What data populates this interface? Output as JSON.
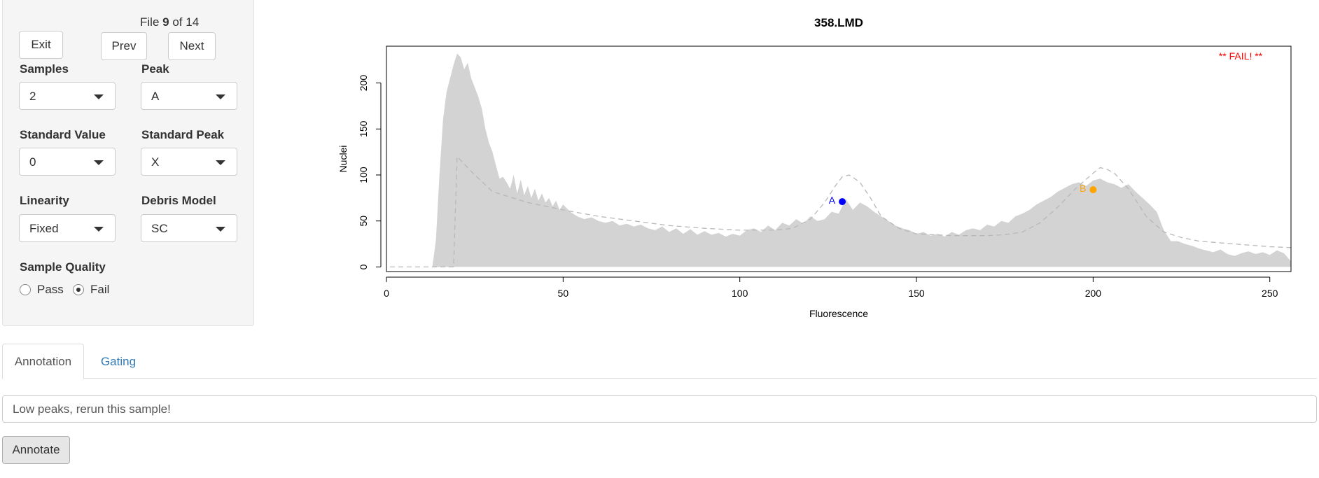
{
  "nav": {
    "file_prefix": "File",
    "file_index": "9",
    "file_of": "of 14",
    "exit_label": "Exit",
    "prev_label": "Prev",
    "next_label": "Next"
  },
  "controls": {
    "samples": {
      "label": "Samples",
      "value": "2"
    },
    "peak": {
      "label": "Peak",
      "value": "A"
    },
    "standard_value": {
      "label": "Standard Value",
      "value": "0"
    },
    "standard_peak": {
      "label": "Standard Peak",
      "value": "X"
    },
    "linearity": {
      "label": "Linearity",
      "value": "Fixed"
    },
    "debris_model": {
      "label": "Debris Model",
      "value": "SC"
    },
    "sample_quality": {
      "label": "Sample Quality",
      "options": [
        "Pass",
        "Fail"
      ],
      "selected": "Fail"
    }
  },
  "tabs": [
    {
      "label": "Annotation",
      "active": true
    },
    {
      "label": "Gating",
      "active": false
    }
  ],
  "annotation": {
    "value": "Low peaks, rerun this sample!"
  },
  "annotate_label": "Annotate",
  "colors": {
    "histogram": "#d3d3d3",
    "fit": "#b8b8b8",
    "peak_a": "#0000ff",
    "peak_b": "#ffa500",
    "fail": "#ff0000"
  },
  "chart_data": {
    "type": "area",
    "title": "358.LMD",
    "xlabel": "Fluorescence",
    "ylabel": "Nuclei",
    "xlim": [
      0,
      256
    ],
    "ylim": [
      -5,
      240
    ],
    "xticks": [
      0,
      50,
      100,
      150,
      200,
      250
    ],
    "yticks": [
      0,
      50,
      100,
      150,
      200
    ],
    "annotation": "** FAIL! **",
    "grid": false,
    "histogram": {
      "x": [
        13,
        14,
        15,
        16,
        17,
        18,
        19,
        20,
        21,
        22,
        23,
        24,
        25,
        26,
        27,
        28,
        29,
        30,
        31,
        32,
        33,
        34,
        35,
        36,
        37,
        38,
        39,
        40,
        41,
        42,
        43,
        44,
        45,
        46,
        47,
        48,
        49,
        50,
        52,
        54,
        56,
        58,
        60,
        62,
        64,
        66,
        68,
        70,
        72,
        74,
        76,
        78,
        80,
        82,
        84,
        86,
        88,
        90,
        92,
        94,
        96,
        98,
        100,
        102,
        104,
        106,
        108,
        110,
        112,
        114,
        116,
        118,
        120,
        122,
        124,
        126,
        128,
        130,
        132,
        134,
        136,
        138,
        140,
        142,
        144,
        146,
        148,
        150,
        152,
        154,
        156,
        158,
        160,
        162,
        164,
        166,
        168,
        170,
        172,
        174,
        176,
        178,
        180,
        182,
        184,
        186,
        188,
        190,
        192,
        194,
        196,
        198,
        200,
        202,
        204,
        206,
        208,
        210,
        212,
        214,
        216,
        218,
        220,
        222,
        224,
        226,
        228,
        230,
        232,
        234,
        236,
        238,
        240,
        242,
        244,
        246,
        248,
        250,
        252,
        254,
        256
      ],
      "y": [
        0,
        30,
        100,
        160,
        190,
        205,
        220,
        232,
        228,
        215,
        222,
        205,
        195,
        185,
        172,
        150,
        135,
        125,
        110,
        96,
        98,
        92,
        85,
        100,
        80,
        95,
        78,
        88,
        75,
        85,
        72,
        80,
        70,
        75,
        66,
        72,
        62,
        68,
        60,
        55,
        52,
        54,
        50,
        48,
        50,
        45,
        47,
        44,
        46,
        42,
        40,
        44,
        38,
        42,
        36,
        41,
        35,
        39,
        35,
        37,
        33,
        36,
        34,
        40,
        42,
        38,
        45,
        40,
        48,
        45,
        52,
        47,
        55,
        50,
        52,
        60,
        58,
        74,
        62,
        70,
        66,
        60,
        55,
        50,
        45,
        42,
        40,
        36,
        38,
        34,
        36,
        33,
        38,
        35,
        40,
        42,
        40,
        46,
        44,
        50,
        48,
        55,
        58,
        62,
        68,
        72,
        76,
        82,
        86,
        90,
        92,
        88,
        94,
        96,
        92,
        90,
        86,
        90,
        82,
        75,
        68,
        60,
        40,
        28,
        28,
        25,
        23,
        20,
        18,
        16,
        19,
        14,
        12,
        15,
        17,
        14,
        16,
        13,
        18,
        15,
        6
      ],
      "color": "#d3d3d3"
    },
    "fit": {
      "x": [
        1,
        10,
        18,
        19,
        20,
        25,
        30,
        40,
        50,
        60,
        70,
        80,
        90,
        100,
        110,
        115,
        120,
        124,
        127,
        129,
        131,
        134,
        137,
        140,
        145,
        150,
        160,
        170,
        175,
        180,
        185,
        190,
        195,
        200,
        202,
        204,
        206,
        210,
        215,
        220,
        225,
        230,
        240,
        250,
        256
      ],
      "y": [
        0,
        0,
        0,
        0,
        120,
        100,
        82,
        70,
        62,
        55,
        50,
        45,
        42,
        40,
        40,
        42,
        52,
        70,
        88,
        98,
        100,
        92,
        75,
        55,
        42,
        36,
        34,
        34,
        35,
        38,
        48,
        65,
        85,
        102,
        108,
        106,
        102,
        85,
        55,
        38,
        32,
        28,
        25,
        22,
        21
      ]
    },
    "peaks": [
      {
        "label": "A",
        "x": 129,
        "y": 71
      },
      {
        "label": "B",
        "x": 200,
        "y": 84
      }
    ]
  }
}
